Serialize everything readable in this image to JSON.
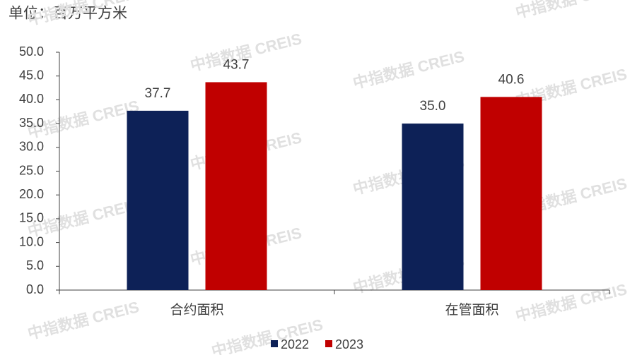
{
  "chart_data": {
    "type": "bar",
    "title": "单位：百万平方米",
    "watermark": "中指数据 CREIS",
    "categories": [
      "合约面积",
      "在管面积"
    ],
    "series": [
      {
        "name": "2022",
        "color": "#0d2157",
        "values": [
          37.7,
          35.0
        ],
        "value_labels": [
          "37.7",
          "35.0"
        ]
      },
      {
        "name": "2023",
        "color": "#c00000",
        "values": [
          43.7,
          40.6
        ],
        "value_labels": [
          "43.7",
          "40.6"
        ]
      }
    ],
    "ylim": [
      0,
      50
    ],
    "yticks": [
      {
        "value": 0,
        "label": "0.0"
      },
      {
        "value": 5,
        "label": "5.0"
      },
      {
        "value": 10,
        "label": "10.0"
      },
      {
        "value": 15,
        "label": "15.0"
      },
      {
        "value": 20,
        "label": "20.0"
      },
      {
        "value": 25,
        "label": "25.0"
      },
      {
        "value": 30,
        "label": "30.0"
      },
      {
        "value": 35,
        "label": "35.0"
      },
      {
        "value": 40,
        "label": "40.0"
      },
      {
        "value": 45,
        "label": "45.0"
      },
      {
        "value": 50,
        "label": "50.0"
      }
    ],
    "grid": false,
    "legend": "bottom"
  }
}
